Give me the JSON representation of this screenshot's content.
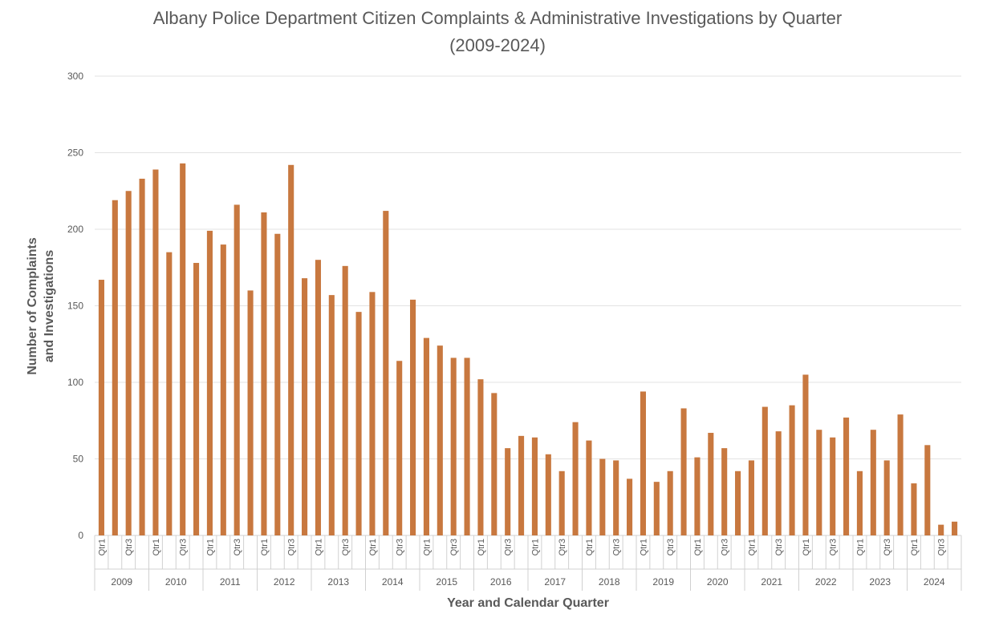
{
  "chart_data": {
    "type": "bar",
    "title_line1": "Albany Police Department Citizen Complaints & Administrative Investigations by Quarter",
    "title_line2": "(2009-2024)",
    "xlabel": "Year and Calendar Quarter",
    "ylabel_line1": "Number of Complaints",
    "ylabel_line2": "and Investigations",
    "ylim": [
      0,
      300
    ],
    "yticks": [
      0,
      50,
      100,
      150,
      200,
      250,
      300
    ],
    "grid": true,
    "bar_color": "#C8783F",
    "years": [
      "2009",
      "2010",
      "2011",
      "2012",
      "2013",
      "2014",
      "2015",
      "2016",
      "2017",
      "2018",
      "2019",
      "2020",
      "2021",
      "2022",
      "2023",
      "2024"
    ],
    "quarter_labels": [
      "Qtr1",
      "",
      "Qtr3",
      ""
    ],
    "values": [
      167,
      219,
      225,
      233,
      239,
      185,
      243,
      178,
      199,
      190,
      216,
      160,
      211,
      197,
      242,
      168,
      180,
      157,
      176,
      146,
      159,
      212,
      114,
      154,
      129,
      124,
      116,
      116,
      102,
      93,
      57,
      65,
      64,
      53,
      42,
      74,
      62,
      50,
      49,
      37,
      94,
      35,
      42,
      83,
      51,
      67,
      57,
      42,
      49,
      84,
      68,
      85,
      105,
      69,
      64,
      77,
      42,
      69,
      49,
      79,
      34,
      59,
      7,
      9
    ]
  }
}
